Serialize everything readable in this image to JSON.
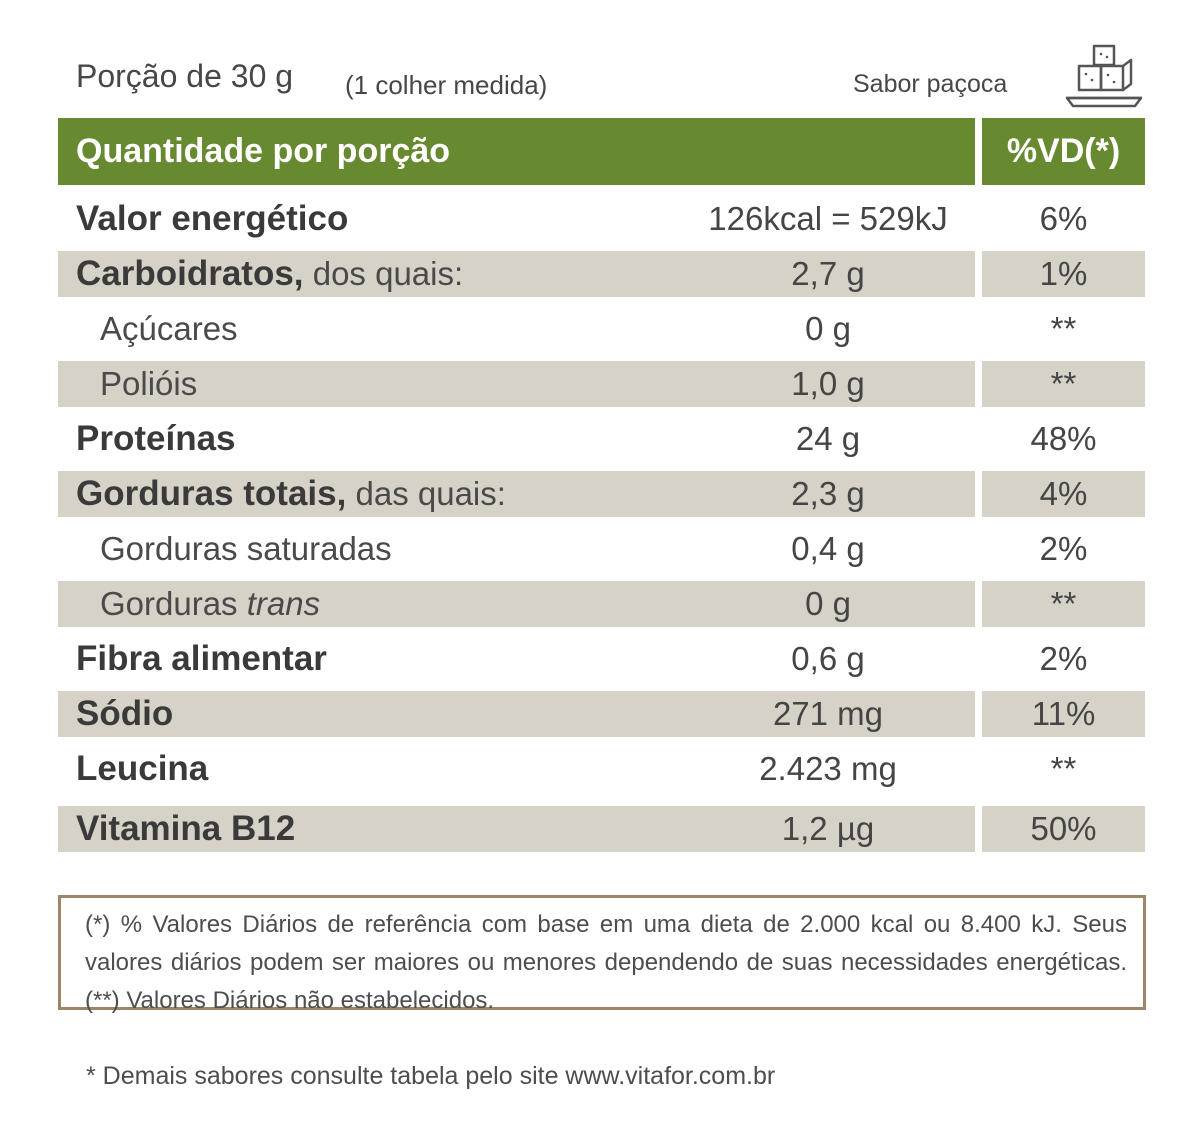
{
  "serving": {
    "size": "Porção de 30 g",
    "measure": "(1 colher medida)"
  },
  "flavor": "Sabor paçoca",
  "icon": "paçoca-plate-icon",
  "header": {
    "quantity": "Quantidade por porção",
    "vd": "%VD(*)"
  },
  "rows": [
    {
      "label": "Valor energético",
      "suffix": "",
      "amount": "126kcal = 529kJ",
      "vd": "6%"
    },
    {
      "label": "Carboidratos,",
      "suffix": " dos quais:",
      "amount": "2,7 g",
      "vd": "1%"
    },
    {
      "label": "Açúcares",
      "amount": "0 g",
      "vd": "**"
    },
    {
      "label": "Polióis",
      "amount": "1,0 g",
      "vd": "**"
    },
    {
      "label": "Proteínas",
      "suffix": "",
      "amount": "24 g",
      "vd": "48%"
    },
    {
      "label": "Gorduras totais,",
      "suffix": " das quais:",
      "amount": "2,3 g",
      "vd": "4%"
    },
    {
      "label": "Gorduras saturadas",
      "amount": "0,4 g",
      "vd": "2%"
    },
    {
      "label": "Gorduras ",
      "label_italic": "trans",
      "amount": "0 g",
      "vd": "**"
    },
    {
      "label": "Fibra alimentar",
      "suffix": "",
      "amount": "0,6 g",
      "vd": "2%"
    },
    {
      "label": "Sódio",
      "suffix": "",
      "amount": "271 mg",
      "vd": "11%"
    },
    {
      "label": "Leucina",
      "suffix": "",
      "amount": "2.423 mg",
      "vd": "**"
    },
    {
      "label": "Vitamina B12",
      "suffix": "",
      "amount": "1,2 µg",
      "vd": "50%"
    }
  ],
  "footnote": "(*) % Valores Diários de referência com base em uma dieta de 2.000 kcal ou 8.400 kJ. Seus valores diários podem ser maiores ou menores dependendo de suas necessidades energéticas. (**) Valores Diários não estabelecidos.",
  "bottom_note": "* Demais sabores consulte tabela pelo site www.vitafor.com.br",
  "colors": {
    "header_green": "#67892f",
    "row_shade": "#d7d2c7",
    "footnote_border": "#9c8667"
  }
}
